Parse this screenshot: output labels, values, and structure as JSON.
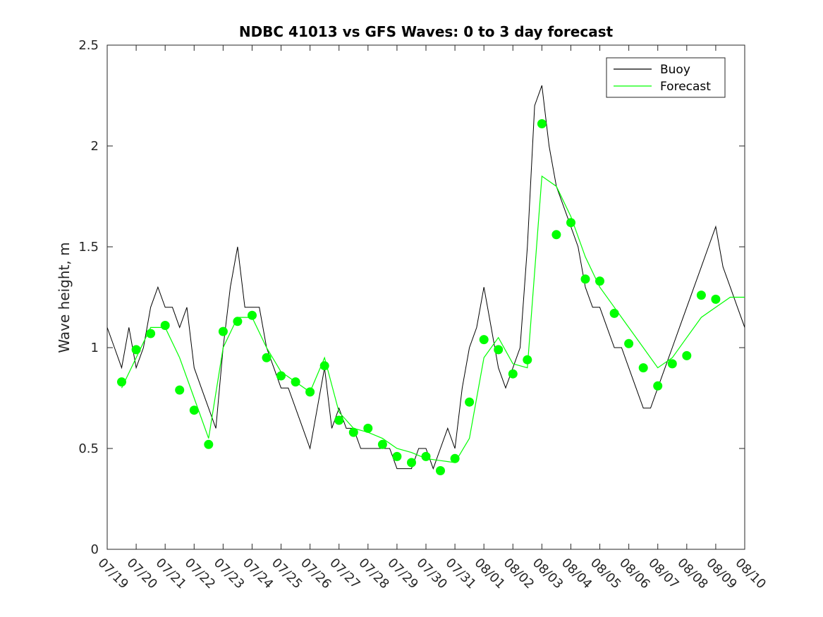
{
  "chart_data": {
    "type": "line",
    "title": "NDBC 41013 vs GFS Waves: 0 to 3 day forecast",
    "xlabel": "",
    "ylabel": "Wave height, m",
    "ylim": [
      0,
      2.5
    ],
    "yticks": [
      "0",
      "0.5",
      "1",
      "1.5",
      "2",
      "2.5"
    ],
    "xlim": [
      "07/19",
      "08/10"
    ],
    "xticks": [
      "07/19",
      "07/20",
      "07/21",
      "07/22",
      "07/23",
      "07/24",
      "07/25",
      "07/26",
      "07/27",
      "07/28",
      "07/29",
      "07/30",
      "07/31",
      "08/01",
      "08/02",
      "08/03",
      "08/04",
      "08/05",
      "08/06",
      "08/07",
      "08/08",
      "08/09",
      "08/10"
    ],
    "grid": false,
    "legend": {
      "placement": "top-right",
      "entries": [
        "Buoy",
        "Forecast"
      ]
    },
    "colors": {
      "buoy": "#000000",
      "forecast": "#00ff00",
      "axis": "#262626"
    },
    "series": [
      {
        "name": "Buoy",
        "style": "black-line",
        "x": [
          "07/19 00:00",
          "07/19 06:00",
          "07/19 12:00",
          "07/19 18:00",
          "07/20 00:00",
          "07/20 06:00",
          "07/20 12:00",
          "07/20 18:00",
          "07/21 00:00",
          "07/21 06:00",
          "07/21 12:00",
          "07/21 18:00",
          "07/22 00:00",
          "07/22 06:00",
          "07/22 12:00",
          "07/22 18:00",
          "07/23 00:00",
          "07/23 06:00",
          "07/23 12:00",
          "07/23 18:00",
          "07/24 00:00",
          "07/24 06:00",
          "07/24 12:00",
          "07/24 18:00",
          "07/25 00:00",
          "07/25 06:00",
          "07/25 12:00",
          "07/25 18:00",
          "07/26 00:00",
          "07/26 06:00",
          "07/26 12:00",
          "07/26 18:00",
          "07/27 00:00",
          "07/27 06:00",
          "07/27 12:00",
          "07/27 18:00",
          "07/28 00:00",
          "07/28 06:00",
          "07/28 12:00",
          "07/28 18:00",
          "07/29 00:00",
          "07/29 06:00",
          "07/29 12:00",
          "07/29 18:00",
          "07/30 00:00",
          "07/30 06:00",
          "07/30 12:00",
          "07/30 18:00",
          "07/31 00:00",
          "07/31 06:00",
          "07/31 12:00",
          "07/31 18:00",
          "08/01 00:00",
          "08/01 06:00",
          "08/01 12:00",
          "08/01 18:00",
          "08/02 00:00",
          "08/02 06:00",
          "08/02 12:00",
          "08/02 18:00",
          "08/03 00:00",
          "08/03 06:00",
          "08/03 12:00",
          "08/03 18:00",
          "08/04 00:00",
          "08/04 06:00",
          "08/04 12:00",
          "08/04 18:00",
          "08/05 00:00",
          "08/05 06:00",
          "08/05 12:00",
          "08/05 18:00",
          "08/06 00:00",
          "08/06 06:00",
          "08/06 12:00",
          "08/06 18:00",
          "08/07 00:00",
          "08/07 06:00",
          "08/07 12:00",
          "08/07 18:00",
          "08/08 00:00",
          "08/08 06:00",
          "08/08 12:00",
          "08/08 18:00",
          "08/09 00:00",
          "08/09 06:00",
          "08/09 12:00",
          "08/09 18:00",
          "08/10 00:00"
        ],
        "values": [
          1.1,
          1.0,
          0.9,
          1.1,
          0.9,
          1.0,
          1.2,
          1.3,
          1.2,
          1.2,
          1.1,
          1.2,
          0.9,
          0.8,
          0.7,
          0.6,
          1.0,
          1.3,
          1.5,
          1.2,
          1.2,
          1.2,
          1.0,
          0.9,
          0.8,
          0.8,
          0.7,
          0.6,
          0.5,
          0.7,
          0.9,
          0.6,
          0.7,
          0.6,
          0.6,
          0.5,
          0.5,
          0.5,
          0.5,
          0.5,
          0.4,
          0.4,
          0.4,
          0.5,
          0.5,
          0.4,
          0.5,
          0.6,
          0.5,
          0.8,
          1.0,
          1.1,
          1.3,
          1.1,
          0.9,
          0.8,
          0.9,
          1.0,
          1.5,
          2.2,
          2.3,
          2.0,
          1.8,
          1.7,
          1.6,
          1.5,
          1.3,
          1.2,
          1.2,
          1.1,
          1.0,
          1.0,
          0.9,
          0.8,
          0.7,
          0.7,
          0.8,
          0.9,
          1.0,
          1.1,
          1.2,
          1.3,
          1.4,
          1.5,
          1.6,
          1.4,
          1.3,
          1.2,
          1.1
        ]
      },
      {
        "name": "Forecast",
        "style": "green-lines",
        "x": [
          "07/19 12:00",
          "07/20 00:00",
          "07/20 12:00",
          "07/21 00:00",
          "07/21 12:00",
          "07/22 00:00",
          "07/22 12:00",
          "07/23 00:00",
          "07/23 12:00",
          "07/24 00:00",
          "07/24 12:00",
          "07/25 00:00",
          "07/25 12:00",
          "07/26 00:00",
          "07/26 12:00",
          "07/27 00:00",
          "07/27 12:00",
          "07/28 00:00",
          "07/28 12:00",
          "07/29 00:00",
          "07/29 12:00",
          "07/30 00:00",
          "07/30 12:00",
          "07/31 00:00",
          "07/31 12:00",
          "08/01 00:00",
          "08/01 12:00",
          "08/02 00:00",
          "08/02 12:00",
          "08/03 00:00",
          "08/03 12:00",
          "08/04 00:00",
          "08/04 12:00",
          "08/05 00:00",
          "08/05 12:00",
          "08/06 00:00",
          "08/06 12:00",
          "08/07 00:00",
          "08/07 12:00",
          "08/08 00:00",
          "08/08 12:00",
          "08/09 00:00",
          "08/09 12:00",
          "08/10 00:00"
        ],
        "values": [
          0.8,
          0.95,
          1.1,
          1.1,
          0.95,
          0.75,
          0.55,
          1.0,
          1.15,
          1.15,
          1.0,
          0.88,
          0.83,
          0.78,
          0.95,
          0.68,
          0.6,
          0.58,
          0.55,
          0.5,
          0.48,
          0.45,
          0.44,
          0.43,
          0.55,
          0.95,
          1.05,
          0.92,
          0.9,
          1.85,
          1.8,
          1.65,
          1.45,
          1.3,
          1.2,
          1.1,
          1.0,
          0.9,
          0.95,
          1.05,
          1.15,
          1.2,
          1.25,
          1.25
        ]
      },
      {
        "name": "",
        "style": "green-markers",
        "x": [
          "07/19 12:00",
          "07/20 00:00",
          "07/20 12:00",
          "07/21 00:00",
          "07/21 12:00",
          "07/22 00:00",
          "07/22 12:00",
          "07/23 00:00",
          "07/23 12:00",
          "07/24 00:00",
          "07/24 12:00",
          "07/25 00:00",
          "07/25 12:00",
          "07/26 00:00",
          "07/26 12:00",
          "07/27 00:00",
          "07/27 12:00",
          "07/28 00:00",
          "07/28 12:00",
          "07/29 00:00",
          "07/29 12:00",
          "07/30 00:00",
          "07/30 12:00",
          "07/31 00:00",
          "07/31 12:00",
          "08/01 00:00",
          "08/01 12:00",
          "08/02 00:00",
          "08/02 12:00",
          "08/03 00:00",
          "08/03 12:00",
          "08/04 00:00",
          "08/04 12:00",
          "08/05 00:00",
          "08/05 12:00",
          "08/06 00:00",
          "08/06 12:00",
          "08/07 00:00",
          "08/07 12:00",
          "08/08 00:00",
          "08/08 12:00",
          "08/09 00:00"
        ],
        "values": [
          0.83,
          0.99,
          1.07,
          1.11,
          0.79,
          0.69,
          0.52,
          1.08,
          1.13,
          1.16,
          0.95,
          0.86,
          0.83,
          0.78,
          0.91,
          0.64,
          0.58,
          0.6,
          0.52,
          0.46,
          0.43,
          0.46,
          0.39,
          0.45,
          0.73,
          1.04,
          0.99,
          0.87,
          0.94,
          2.11,
          1.56,
          1.62,
          1.34,
          1.33,
          1.17,
          1.02,
          0.9,
          0.81,
          0.92,
          0.96,
          1.26,
          1.24
        ]
      }
    ]
  }
}
